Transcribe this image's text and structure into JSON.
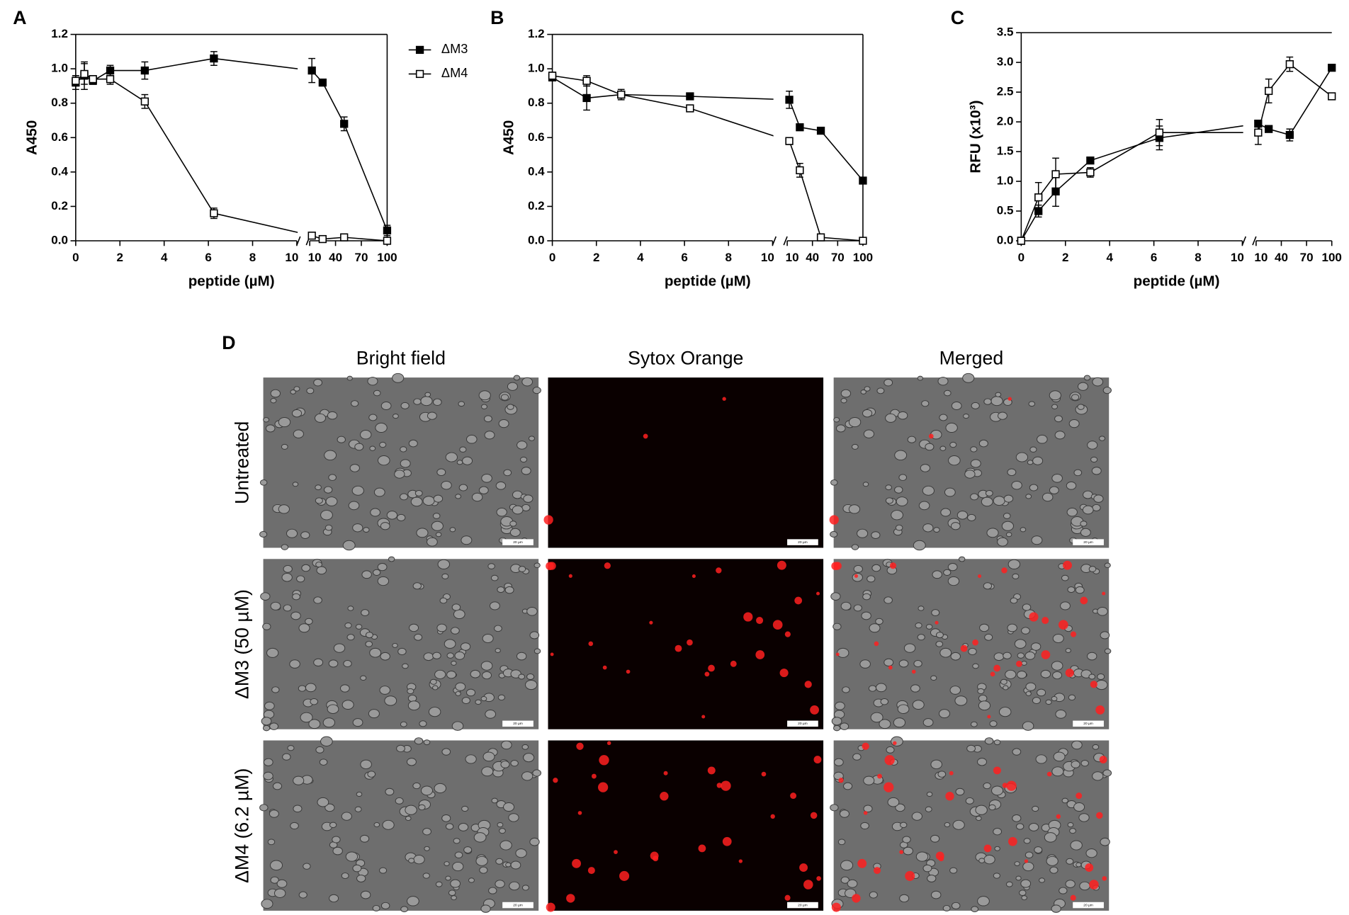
{
  "chart_data": [
    {
      "type": "line",
      "panel_label": "A",
      "y_label": "A450",
      "x_label": "peptide (µM)",
      "x": [
        0,
        0.39,
        0.78,
        1.56,
        3.125,
        6.25,
        12.5,
        25,
        50,
        100
      ],
      "xlim": [
        [
          0,
          10
        ],
        [
          10,
          100
        ]
      ],
      "xticks": [
        [
          0,
          2,
          4,
          6,
          8,
          10
        ],
        [
          10,
          40,
          70,
          100
        ]
      ],
      "ylim": [
        0,
        1.2
      ],
      "yticks": [
        {
          "value": 0,
          "label": "0.0"
        },
        0.2,
        0.4,
        0.6,
        0.8,
        {
          "value": 1,
          "label": "1.0"
        },
        1.2
      ],
      "legend": "right",
      "series": [
        {
          "name": "ΔM3",
          "color": "#000000",
          "marker_fill": "#000000",
          "values": [
            0.92,
            0.96,
            0.93,
            0.99,
            0.99,
            1.06,
            0.99,
            0.92,
            0.68,
            0.06
          ],
          "errors": [
            0.04,
            0.08,
            0.02,
            0.03,
            0.05,
            0.04,
            0.07,
            0.02,
            0.04,
            0.03
          ]
        },
        {
          "name": "ΔM4",
          "color": "#000000",
          "marker_fill": "#ffffff",
          "values": [
            0.93,
            0.97,
            0.94,
            0.94,
            0.81,
            0.16,
            0.03,
            0.01,
            0.02,
            0.0
          ],
          "errors": [
            0.03,
            0.06,
            0.02,
            0.03,
            0.04,
            0.03,
            0.01,
            0.01,
            0.01,
            0.01
          ]
        }
      ]
    },
    {
      "type": "line",
      "panel_label": "B",
      "y_label": "A450",
      "x_label": "peptide (µM)",
      "x": [
        0,
        1.56,
        3.125,
        6.25,
        12.5,
        25,
        50,
        100
      ],
      "xlim": [
        [
          0,
          10
        ],
        [
          10,
          100
        ]
      ],
      "xticks": [
        [
          0,
          2,
          4,
          6,
          8,
          10
        ],
        [
          10,
          40,
          70,
          100
        ]
      ],
      "ylim": [
        0,
        1.2
      ],
      "yticks": [
        {
          "value": 0,
          "label": "0.0"
        },
        0.2,
        0.4,
        0.6,
        0.8,
        {
          "value": 1,
          "label": "1.0"
        },
        1.2
      ],
      "series": [
        {
          "name": "ΔM3",
          "color": "#000000",
          "marker_fill": "#000000",
          "values": [
            0.95,
            0.83,
            0.85,
            0.84,
            0.82,
            0.66,
            0.64,
            0.35
          ],
          "errors": [
            0.02,
            0.07,
            0.03,
            0.01,
            0.05,
            0.01,
            0.01,
            0.01
          ]
        },
        {
          "name": "ΔM4",
          "color": "#000000",
          "marker_fill": "#ffffff",
          "values": [
            0.96,
            0.93,
            0.85,
            0.77,
            0.58,
            0.41,
            0.02,
            0.0
          ],
          "errors": [
            0.02,
            0.03,
            0.02,
            0.01,
            0.02,
            0.04,
            0.01,
            0.01
          ]
        }
      ]
    },
    {
      "type": "line",
      "panel_label": "C",
      "y_label": "RFU (x10³)",
      "x_label": "peptide (µM)",
      "x": [
        0,
        0.78,
        1.56,
        3.125,
        6.25,
        12.5,
        25,
        50,
        100
      ],
      "xlim": [
        [
          0,
          10
        ],
        [
          10,
          100
        ]
      ],
      "xticks": [
        [
          0,
          2,
          4,
          6,
          8,
          10
        ],
        [
          10,
          40,
          70,
          100
        ]
      ],
      "ylim": [
        0,
        3.5
      ],
      "yticks": [
        {
          "value": 0,
          "label": "0.0"
        },
        0.5,
        {
          "value": 1,
          "label": "1.0"
        },
        1.5,
        {
          "value": 2,
          "label": "2.0"
        },
        2.5,
        {
          "value": 3,
          "label": "3.0"
        },
        3.5
      ],
      "series": [
        {
          "name": "ΔM3",
          "color": "#000000",
          "marker_fill": "#000000",
          "values": [
            0.0,
            0.5,
            0.83,
            1.35,
            1.73,
            1.97,
            1.88,
            1.78,
            2.91
          ],
          "errors": [
            0.02,
            0.1,
            0.25,
            0.03,
            0.2,
            0.05,
            0.03,
            0.1,
            0.03
          ]
        },
        {
          "name": "ΔM4",
          "color": "#000000",
          "marker_fill": "#ffffff",
          "values": [
            0.0,
            0.73,
            1.12,
            1.15,
            1.82,
            1.82,
            2.52,
            2.97,
            2.43
          ],
          "errors": [
            0.02,
            0.25,
            0.27,
            0.08,
            0.22,
            0.2,
            0.2,
            0.12,
            0.05
          ]
        }
      ]
    }
  ],
  "panel_d": {
    "panel_label": "D",
    "columns": [
      "Bright field",
      "Sytox Orange",
      "Merged"
    ],
    "rows": [
      "Untreated",
      "ΔM3 (50 µM)",
      "ΔM4 (6.2 µM)"
    ],
    "scale_bar": "20 µm"
  }
}
